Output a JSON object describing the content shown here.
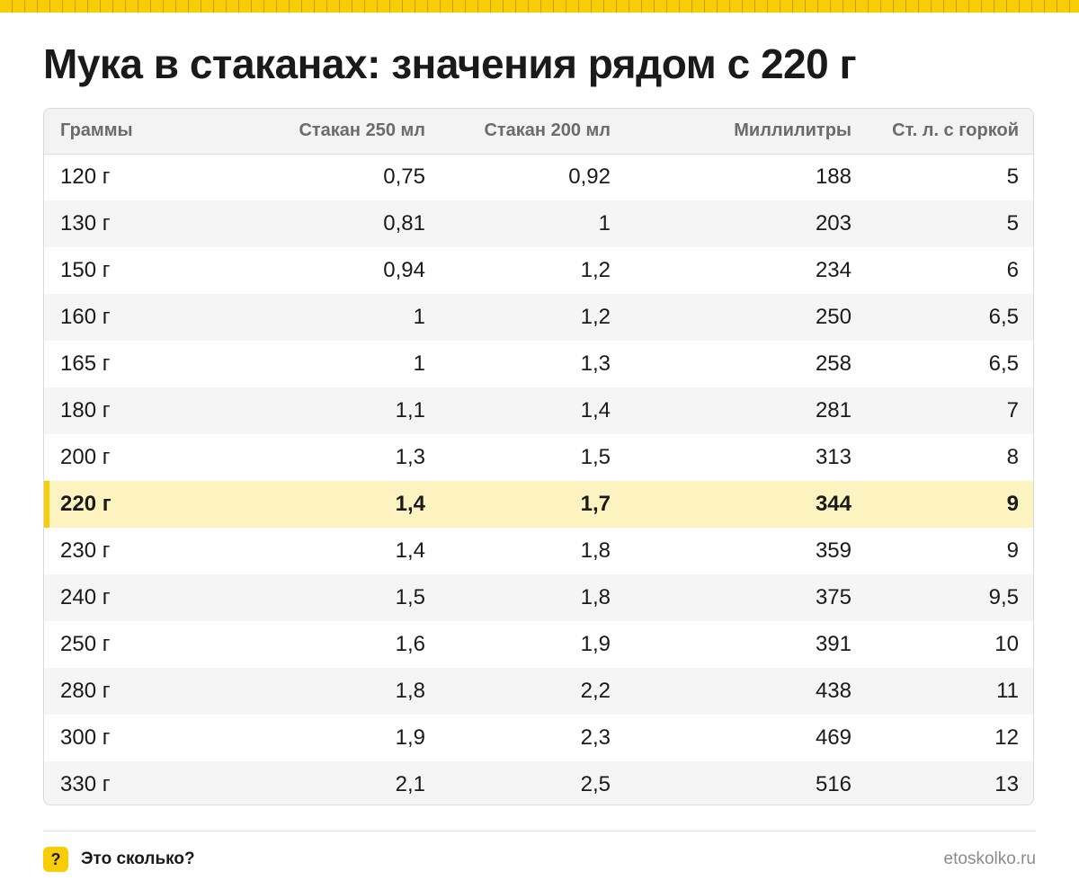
{
  "title": "Мука в стаканах: значения рядом с 220 г",
  "table": {
    "headers": [
      "Граммы",
      "Стакан 250 мл",
      "Стакан 200 мл",
      "Миллилитры",
      "Ст. л. с горкой"
    ],
    "highlight_row": 7,
    "rows": [
      [
        "120 г",
        "0,75",
        "0,92",
        "188",
        "5"
      ],
      [
        "130 г",
        "0,81",
        "1",
        "203",
        "5"
      ],
      [
        "150 г",
        "0,94",
        "1,2",
        "234",
        "6"
      ],
      [
        "160 г",
        "1",
        "1,2",
        "250",
        "6,5"
      ],
      [
        "165 г",
        "1",
        "1,3",
        "258",
        "6,5"
      ],
      [
        "180 г",
        "1,1",
        "1,4",
        "281",
        "7"
      ],
      [
        "200 г",
        "1,3",
        "1,5",
        "313",
        "8"
      ],
      [
        "220 г",
        "1,4",
        "1,7",
        "344",
        "9"
      ],
      [
        "230 г",
        "1,4",
        "1,8",
        "359",
        "9"
      ],
      [
        "240 г",
        "1,5",
        "1,8",
        "375",
        "9,5"
      ],
      [
        "250 г",
        "1,6",
        "1,9",
        "391",
        "10"
      ],
      [
        "280 г",
        "1,8",
        "2,2",
        "438",
        "11"
      ],
      [
        "300 г",
        "1,9",
        "2,3",
        "469",
        "12"
      ],
      [
        "330 г",
        "2,1",
        "2,5",
        "516",
        "13"
      ]
    ]
  },
  "footer": {
    "badge": "?",
    "brand": "Это сколько?",
    "site": "etoskolko.ru"
  },
  "colors": {
    "accent": "#f7cd05",
    "highlight_bg": "#fdf3c1"
  }
}
